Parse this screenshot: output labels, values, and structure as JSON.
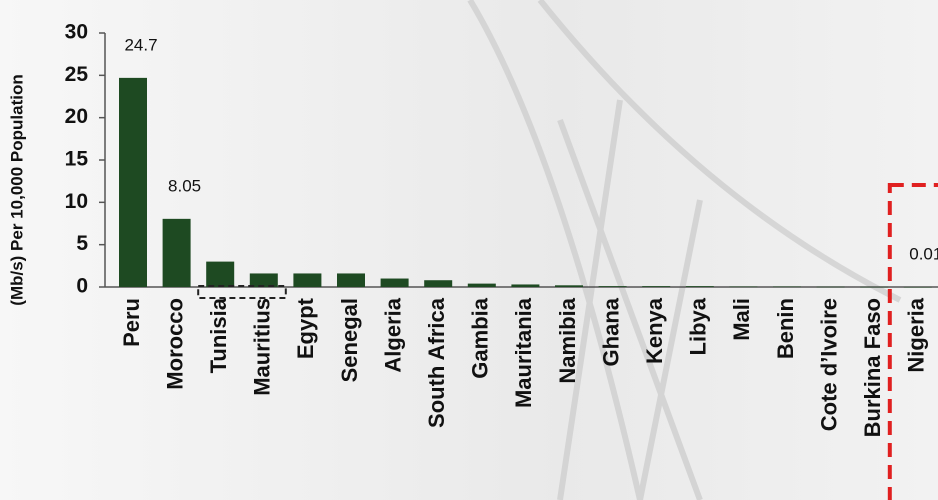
{
  "chart_data": {
    "type": "bar",
    "y_label": "(Mb/s) Per 10,000 Population",
    "categories": [
      "Peru",
      "Morocco",
      "Tunisia",
      "Mauritius",
      "Egypt",
      "Senegal",
      "Algeria",
      "South Africa",
      "Gambia",
      "Mauritania",
      "Namibia",
      "Ghana",
      "Kenya",
      "Libya",
      "Mali",
      "Benin",
      "Cote d’Ivoire",
      "Burkina Faso",
      "Nigeria"
    ],
    "values": [
      24.7,
      8.05,
      3.0,
      1.6,
      1.6,
      1.6,
      1.0,
      0.8,
      0.4,
      0.3,
      0.2,
      0.1,
      0.1,
      0.1,
      0.05,
      0.05,
      0.03,
      0.02,
      0.01
    ],
    "value_labels": [
      "24.7",
      "8.05",
      null,
      null,
      null,
      null,
      null,
      null,
      null,
      null,
      null,
      null,
      null,
      null,
      null,
      null,
      null,
      null,
      "0.01"
    ],
    "color": "#1e4a22",
    "ylim": [
      0,
      30
    ],
    "yticks": [
      0,
      5,
      10,
      15,
      20,
      25,
      30
    ]
  }
}
